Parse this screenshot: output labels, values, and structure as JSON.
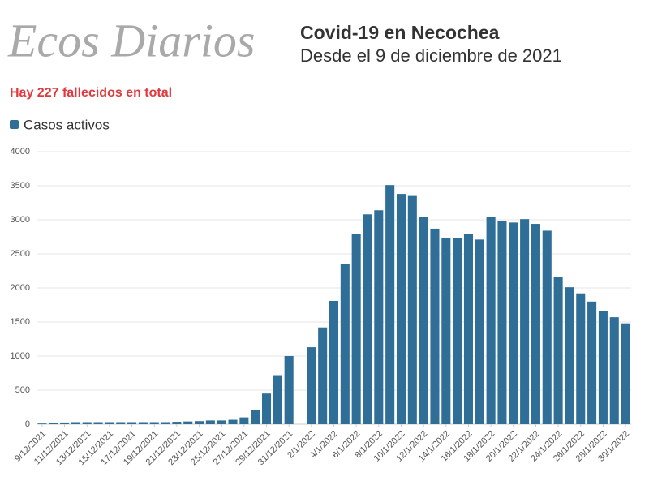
{
  "chart_data": {
    "type": "bar",
    "logo": "Ecos Diarios",
    "title": "Covid-19 en Necochea",
    "subtitle": "Desde el 9 de diciembre de 2021",
    "annotation": "Hay 227 fallecidos en total",
    "categories": [
      "9/12/2021",
      null,
      "11/12/2021",
      null,
      "13/12/2021",
      null,
      "15/12/2021",
      null,
      "17/12/2021",
      null,
      "19/12/2021",
      null,
      "21/12/2021",
      null,
      "23/12/2021",
      null,
      "25/12/2021",
      null,
      "27/12/2021",
      null,
      "29/12/2021",
      null,
      "31/12/2021",
      null,
      "2/1/2022",
      null,
      "4/1/2022",
      null,
      "6/1/2022",
      null,
      "8/1/2022",
      null,
      "10/1/2022",
      null,
      "12/1/2022",
      null,
      "14/1/2022",
      null,
      "16/1/2022",
      null,
      "18/1/2022",
      null,
      "20/1/2022",
      null,
      "22/1/2022",
      null,
      "24/1/2022",
      null,
      "26/1/2022",
      null,
      "28/1/2022",
      null,
      "30/1/2022"
    ],
    "series": [
      {
        "name": "Casos activos",
        "color": "#2f6f97",
        "values": [
          10,
          20,
          25,
          30,
          30,
          30,
          30,
          30,
          30,
          30,
          30,
          30,
          35,
          40,
          45,
          55,
          55,
          65,
          100,
          210,
          450,
          720,
          1000,
          null,
          1130,
          1420,
          1810,
          2350,
          2790,
          3080,
          3140,
          3510,
          3380,
          3350,
          3040,
          2870,
          2730,
          2730,
          2790,
          2710,
          3040,
          2980,
          2960,
          3010,
          2940,
          2840,
          2160,
          2010,
          1920,
          1800,
          1660,
          1570,
          1480
        ]
      }
    ],
    "ylim": [
      0,
      4000
    ],
    "yticks": [
      0,
      500,
      1000,
      1500,
      2000,
      2500,
      3000,
      3500,
      4000
    ],
    "grid": true,
    "legend": "top-left"
  }
}
